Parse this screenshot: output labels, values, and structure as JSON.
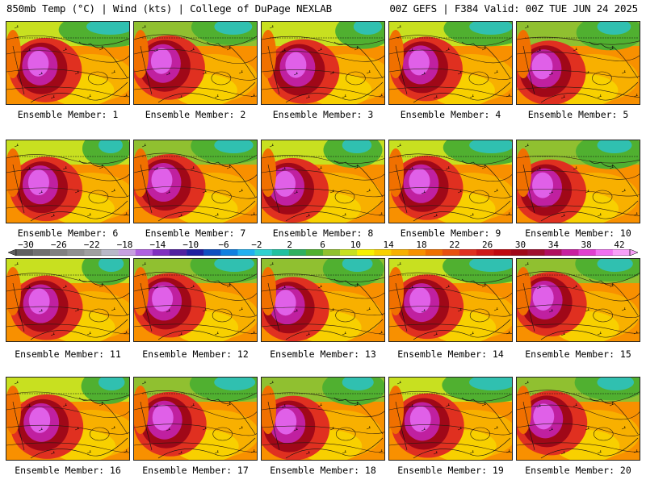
{
  "header": {
    "left_title": "850mb Temp (°C) | Wind (kts) | College of DuPage NEXLAB",
    "right_title": "00Z GEFS | F384 Valid: 00Z TUE JUN 24 2025"
  },
  "panels": [
    {
      "label": "Ensemble Member: 1"
    },
    {
      "label": "Ensemble Member: 2"
    },
    {
      "label": "Ensemble Member: 3"
    },
    {
      "label": "Ensemble Member: 4"
    },
    {
      "label": "Ensemble Member: 5"
    },
    {
      "label": "Ensemble Member: 6"
    },
    {
      "label": "Ensemble Member: 7"
    },
    {
      "label": "Ensemble Member: 8"
    },
    {
      "label": "Ensemble Member: 9"
    },
    {
      "label": "Ensemble Member: 10"
    },
    {
      "label": "Ensemble Member: 11"
    },
    {
      "label": "Ensemble Member: 12"
    },
    {
      "label": "Ensemble Member: 13"
    },
    {
      "label": "Ensemble Member: 14"
    },
    {
      "label": "Ensemble Member: 15"
    },
    {
      "label": "Ensemble Member: 16"
    },
    {
      "label": "Ensemble Member: 17"
    },
    {
      "label": "Ensemble Member: 18"
    },
    {
      "label": "Ensemble Member: 19"
    },
    {
      "label": "Ensemble Member: 20"
    }
  ],
  "colorbar": {
    "ticks": [
      "−30",
      "−26",
      "−22",
      "−18",
      "−14",
      "−10",
      "−6",
      "−2",
      "2",
      "6",
      "10",
      "14",
      "18",
      "22",
      "26",
      "30",
      "34",
      "38",
      "42"
    ],
    "colors": [
      "#606060",
      "#707070",
      "#808080",
      "#909090",
      "#a0a0a0",
      "#b8b8c8",
      "#c8a0e0",
      "#b060e0",
      "#8030c0",
      "#5020a0",
      "#2020a0",
      "#1050c0",
      "#1080e0",
      "#20b0f0",
      "#30d0d0",
      "#20c0a0",
      "#30b060",
      "#50b030",
      "#90c030",
      "#c8e020",
      "#f8f000",
      "#f8d000",
      "#f8b000",
      "#f89000",
      "#f07000",
      "#e85010",
      "#e03020",
      "#d01818",
      "#c00810",
      "#a00818",
      "#a01030",
      "#b01060",
      "#c820a0",
      "#e040d0",
      "#f070f0",
      "#f8a0f8"
    ]
  }
}
